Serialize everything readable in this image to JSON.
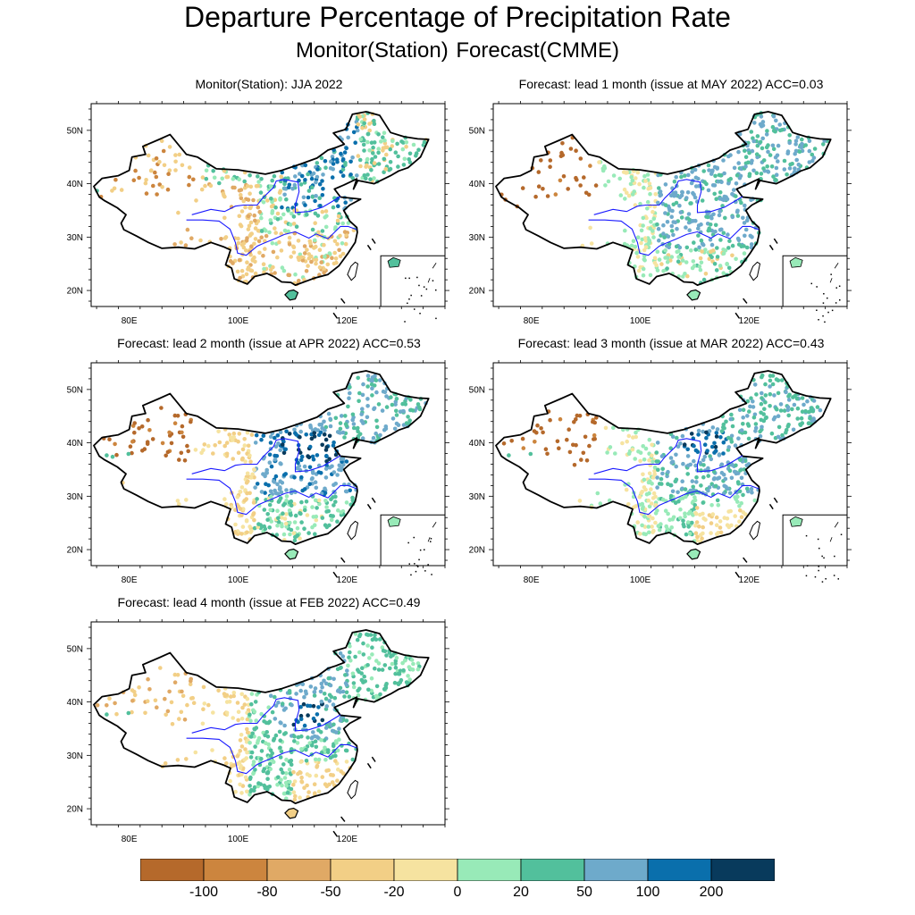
{
  "header": {
    "title": "Departure Percentage of Precipitation Rate",
    "subtitle": "Monitor(Station)   Forecast(CMME)"
  },
  "axes": {
    "lat_labels": [
      "50N",
      "40N",
      "30N",
      "20N"
    ],
    "lon_labels": [
      "80E",
      "100E",
      "120E"
    ]
  },
  "panels": [
    {
      "title": "Monitor(Station): JJA 2022",
      "pattern": "obs"
    },
    {
      "title": "Forecast: lead 1 month (issue at MAY 2022) ACC=0.03",
      "pattern": "f1"
    },
    {
      "title": "Forecast: lead 2 month (issue at APR 2022) ACC=0.53",
      "pattern": "f2"
    },
    {
      "title": "Forecast: lead 3 month (issue at MAR 2022) ACC=0.43",
      "pattern": "f3"
    },
    {
      "title": "Forecast: lead 4 month (issue at FEB 2022) ACC=0.49",
      "pattern": "f4"
    }
  ],
  "colorbar": {
    "colors": [
      "#b5692b",
      "#cc853e",
      "#e0a965",
      "#f2cf86",
      "#f6e3a0",
      "#98eab8",
      "#52c09c",
      "#6eaacb",
      "#0a6fac",
      "#083a5c"
    ],
    "labels": [
      "-100",
      "-80",
      "-50",
      "-20",
      "0",
      "20",
      "50",
      "100",
      "200"
    ]
  }
}
